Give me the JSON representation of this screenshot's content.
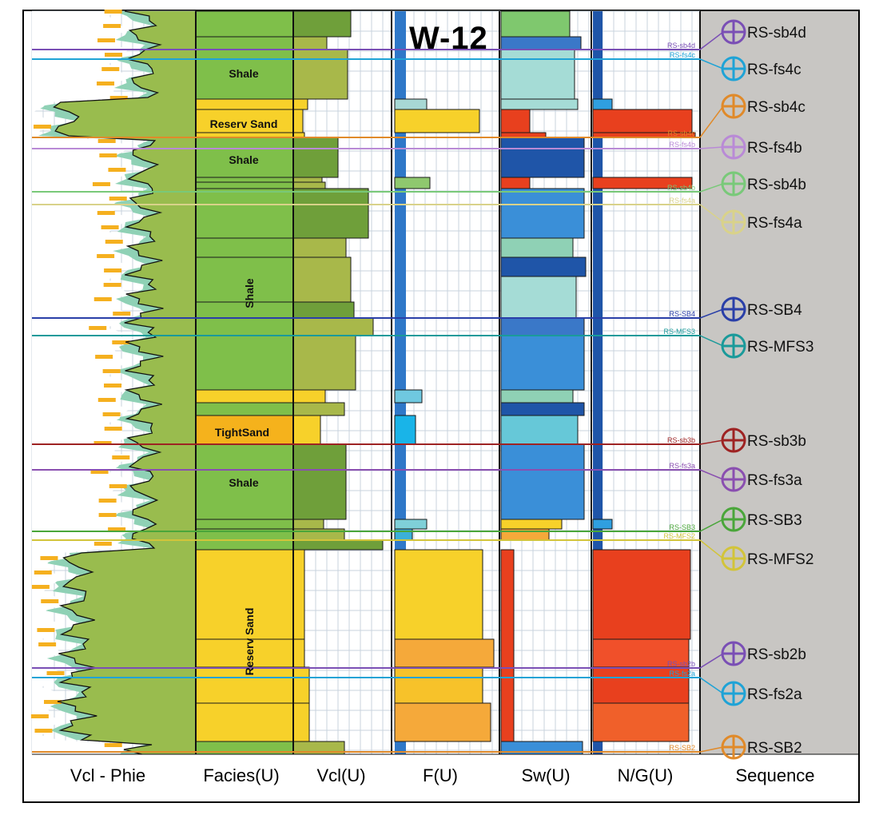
{
  "well": {
    "name": "W-12"
  },
  "columns": [
    {
      "key": "vcl_phie",
      "label": "Vcl - Phie"
    },
    {
      "key": "facies",
      "label": "Facies(U)"
    },
    {
      "key": "vcl",
      "label": "Vcl(U)"
    },
    {
      "key": "f",
      "label": "F(U)"
    },
    {
      "key": "sw",
      "label": "Sw(U)"
    },
    {
      "key": "ng",
      "label": "N/G(U)"
    },
    {
      "key": "sequence",
      "label": "Sequence"
    }
  ],
  "facies_labels": [
    {
      "text": "Shale",
      "orientation": "horizontal"
    },
    {
      "text": "Reservoir Sand",
      "display": "Reserv Sand",
      "orientation": "horizontal"
    },
    {
      "text": "Shale",
      "orientation": "horizontal"
    },
    {
      "text": "Shale",
      "orientation": "vertical"
    },
    {
      "text": "Tight Sand",
      "display": "TightSand",
      "orientation": "horizontal"
    },
    {
      "text": "Shale",
      "orientation": "horizontal"
    },
    {
      "text": "Reservoir Sand",
      "display": "Reserv Sand",
      "orientation": "vertical"
    }
  ],
  "sequence_picks": [
    {
      "name": "RS-sb4d",
      "small": "RS-sb4d",
      "color": "#7a4fb5"
    },
    {
      "name": "RS-fs4c",
      "small": "RS-fs4c",
      "color": "#1fa3d6"
    },
    {
      "name": "RS-sb4c",
      "small": "RS-sb4c",
      "color": "#e08a2a"
    },
    {
      "name": "RS-fs4b",
      "small": "RS-fs4b",
      "color": "#b98ad6"
    },
    {
      "name": "RS-sb4b",
      "small": "RS-sb4b",
      "color": "#79c979"
    },
    {
      "name": "RS-fs4a",
      "small": "RS-fs4a",
      "color": "#d9d28a"
    },
    {
      "name": "RS-SB4",
      "small": "RS-SB4",
      "color": "#2a3fa8"
    },
    {
      "name": "RS-MFS3",
      "small": "RS-MFS3",
      "color": "#1a9a9a"
    },
    {
      "name": "RS-sb3b",
      "small": "RS-sb3b",
      "color": "#9e2323"
    },
    {
      "name": "RS-fs3a",
      "small": "RS-fs3a",
      "color": "#8a4fb0"
    },
    {
      "name": "RS-SB3",
      "small": "RS-SB3",
      "color": "#4aa63a"
    },
    {
      "name": "RS-MFS2",
      "small": "RS-MFS2",
      "color": "#d2c43a"
    },
    {
      "name": "RS-sb2b",
      "small": "RS-sb2b",
      "color": "#7a4fb5"
    },
    {
      "name": "RS-fs2a",
      "small": "RS-fs2a",
      "color": "#1fa3d6"
    },
    {
      "name": "RS-SB2",
      "small": "RS-SB2",
      "color": "#e08a2a"
    }
  ],
  "colors": {
    "shale": "#7fbf4a",
    "reservoir_sand": "#f7d12a",
    "tight_sand": "#f5b21c",
    "vcl_fill": "#a8b84a",
    "vcl_phie_fill": "#8fd1b5",
    "sw_blue": "#3a8fd8",
    "sw_darkblue": "#1f55a8",
    "sw_lightcyan": "#a5dcd6",
    "ng_red": "#e8401e",
    "sequence_bg": "#c8c6c3"
  }
}
